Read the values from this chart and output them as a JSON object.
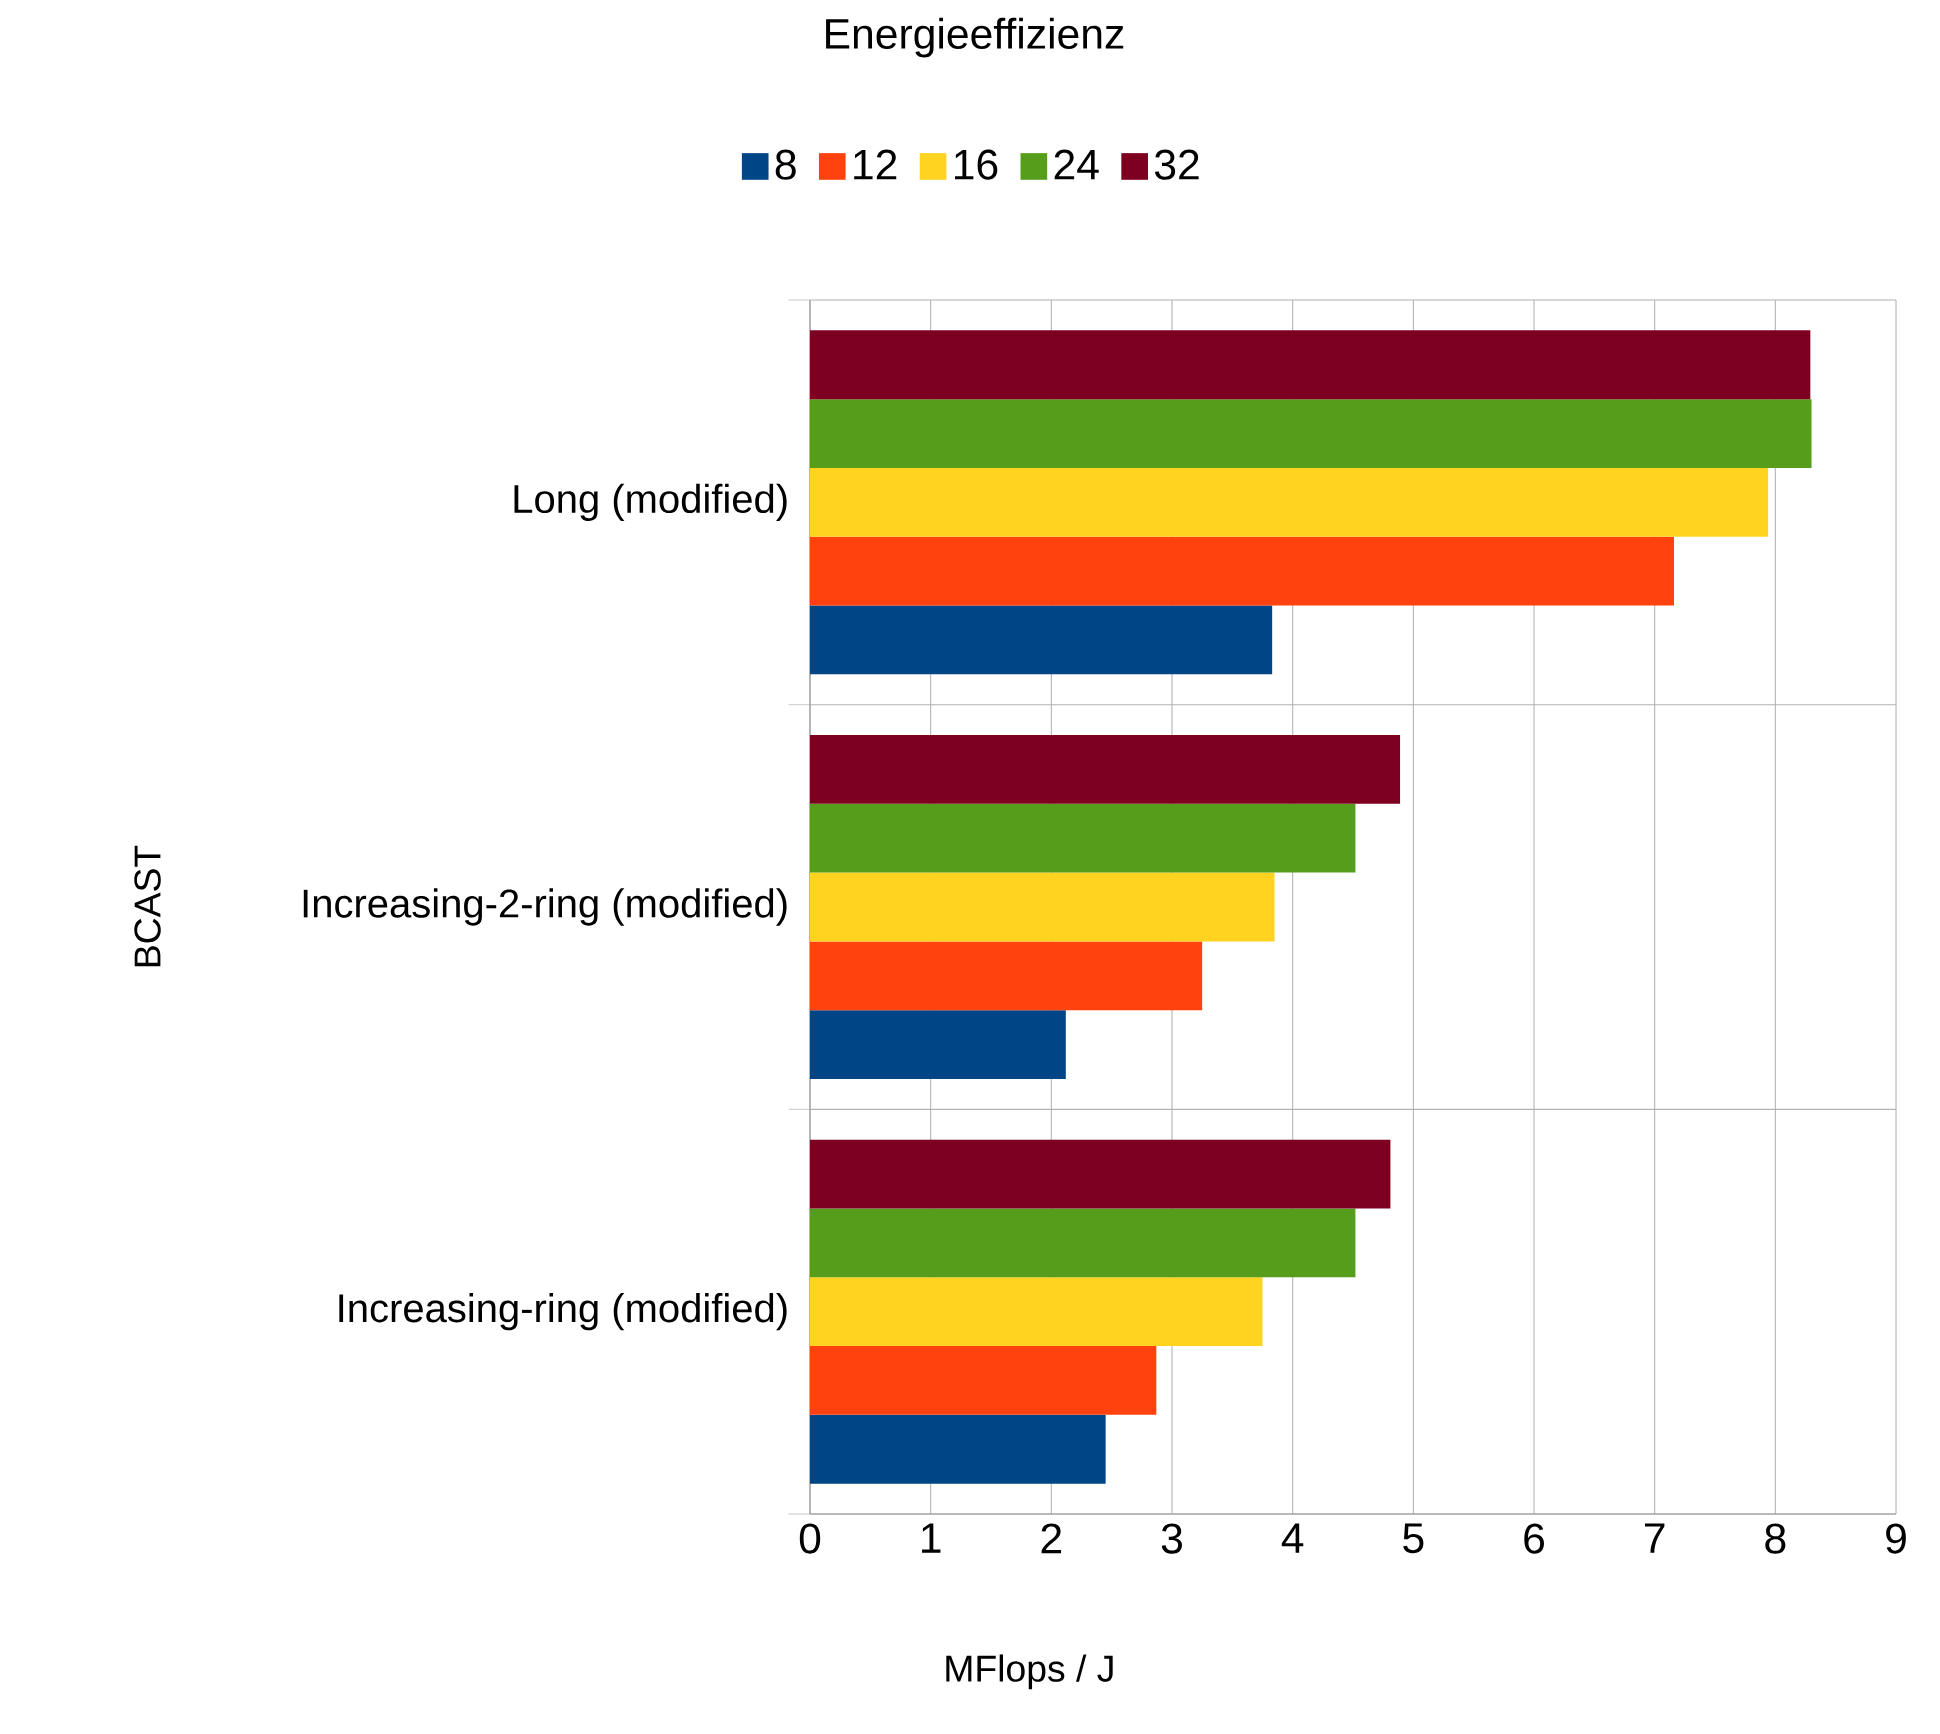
{
  "chart_data": {
    "type": "bar",
    "orientation": "horizontal",
    "title": "Energieeffizienz",
    "xlabel": "MFlops / J",
    "ylabel": "BCAST",
    "categories": [
      "Long (modified)",
      "Increasing-2-ring (modified)",
      "Increasing-ring (modified)"
    ],
    "series": [
      {
        "name": "8",
        "color": "#004586",
        "values": [
          3.83,
          2.12,
          2.45
        ]
      },
      {
        "name": "12",
        "color": "#ff420e",
        "values": [
          7.16,
          3.25,
          2.87
        ]
      },
      {
        "name": "16",
        "color": "#ffd320",
        "values": [
          7.94,
          3.85,
          3.75
        ]
      },
      {
        "name": "24",
        "color": "#579d1c",
        "values": [
          8.3,
          4.52,
          4.52
        ]
      },
      {
        "name": "32",
        "color": "#7e0021",
        "values": [
          8.29,
          4.89,
          4.81
        ]
      }
    ],
    "xlim": [
      0,
      9
    ],
    "xticks": [
      0,
      1,
      2,
      3,
      4,
      5,
      6,
      7,
      8,
      9
    ],
    "grid": true,
    "legend": "top"
  }
}
